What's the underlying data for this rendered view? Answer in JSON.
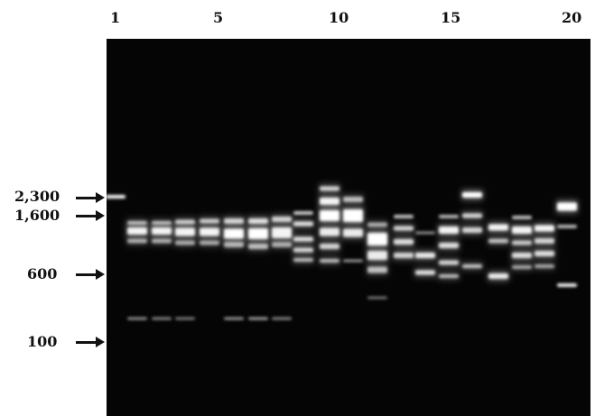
{
  "lane_numbers": [
    "1",
    "5",
    "10",
    "15",
    "20"
  ],
  "size_markers": [
    "2,300",
    "1,600",
    "600",
    "100"
  ],
  "colors": {
    "gel_background": "#050505",
    "band": "#ffffff",
    "text": "#111111"
  }
}
